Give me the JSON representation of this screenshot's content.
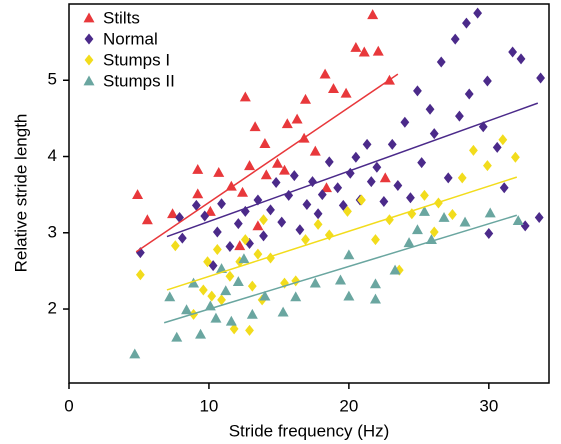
{
  "chart_data": {
    "type": "scatter",
    "xlabel": "Stride frequency (Hz)",
    "ylabel": "Relative stride length",
    "xlim": [
      0,
      34.3
    ],
    "ylim": [
      1.03,
      6.0
    ],
    "xticks": [
      0,
      10,
      20,
      30
    ],
    "yticks": [
      2,
      3,
      4,
      5
    ],
    "legend": "upper left",
    "series": [
      {
        "name": "Stilts",
        "color": "#e8383b",
        "marker": "triangle",
        "x": [
          4.9,
          5.6,
          7.4,
          9.2,
          9.2,
          10.1,
          10.7,
          11.6,
          12.4,
          12.6,
          12.9,
          13.3,
          14.0,
          14.1,
          14.9,
          15.4,
          15.6,
          16.3,
          16.8,
          16.9,
          17.6,
          18.3,
          18.4,
          18.9,
          19.8,
          20.5,
          21.1,
          21.7,
          22.1,
          22.9,
          22.6,
          13.5,
          12.2
        ],
        "values": [
          3.5,
          3.17,
          3.25,
          3.51,
          3.83,
          3.28,
          3.79,
          3.61,
          3.53,
          4.78,
          3.88,
          4.39,
          4.17,
          3.76,
          3.91,
          3.82,
          4.43,
          4.49,
          4.24,
          4.75,
          4.07,
          5.08,
          3.59,
          4.89,
          4.83,
          5.43,
          5.37,
          5.86,
          5.38,
          5.0,
          3.72,
          3.09,
          2.83
        ],
        "fit": {
          "x": [
            4.8,
            23.5
          ],
          "y": [
            2.75,
            5.08
          ]
        }
      },
      {
        "name": "Normal",
        "color": "#4b2a8a",
        "marker": "diamond",
        "x": [
          5.1,
          7.9,
          8.1,
          9.1,
          9.7,
          10.3,
          10.6,
          10.9,
          11.5,
          12.1,
          12.6,
          12.9,
          13.5,
          13.9,
          14.4,
          14.8,
          15.2,
          15.7,
          16.1,
          16.5,
          17.0,
          17.4,
          17.8,
          18.1,
          18.6,
          19.2,
          19.6,
          20.1,
          20.5,
          20.8,
          21.3,
          21.6,
          22.0,
          22.5,
          23.1,
          23.5,
          24.0,
          24.4,
          24.9,
          25.2,
          25.8,
          26.1,
          26.6,
          27.1,
          27.6,
          27.9,
          28.4,
          28.6,
          29.2,
          29.6,
          30.0,
          30.6,
          31.1,
          31.7,
          32.3,
          32.6,
          33.7,
          33.6,
          29.9
        ],
        "values": [
          2.74,
          3.2,
          2.93,
          3.36,
          3.22,
          2.57,
          3.01,
          3.38,
          2.82,
          3.12,
          3.28,
          2.86,
          3.43,
          2.96,
          3.3,
          3.66,
          3.14,
          3.49,
          3.75,
          3.04,
          3.37,
          3.67,
          3.25,
          3.5,
          3.93,
          3.59,
          3.36,
          3.78,
          3.99,
          3.43,
          4.16,
          3.67,
          3.86,
          3.41,
          4.16,
          3.62,
          4.45,
          3.46,
          4.86,
          3.92,
          4.62,
          4.3,
          5.24,
          3.72,
          5.54,
          4.53,
          5.75,
          4.82,
          5.88,
          4.39,
          2.99,
          4.12,
          3.59,
          5.37,
          5.28,
          3.09,
          5.03,
          3.2,
          4.99
        ],
        "fit": {
          "x": [
            7,
            33.5
          ],
          "y": [
            2.95,
            4.7
          ]
        }
      },
      {
        "name": "Stumps I",
        "color": "#f2dc1c",
        "marker": "diamond",
        "x": [
          5.1,
          7.6,
          8.9,
          9.6,
          9.9,
          10.2,
          10.6,
          10.9,
          11.5,
          11.8,
          12.2,
          12.6,
          13.1,
          13.5,
          13.9,
          14.4,
          15.4,
          16.2,
          16.9,
          17.8,
          18.6,
          19.9,
          20.9,
          21.9,
          22.9,
          23.6,
          24.5,
          25.4,
          26.4,
          27.4,
          28.1,
          28.9,
          29.9,
          31.0,
          31.9,
          26.1,
          12.9,
          13.8
        ],
        "values": [
          2.45,
          2.83,
          1.93,
          2.25,
          2.62,
          2.17,
          2.78,
          2.12,
          2.43,
          1.74,
          2.62,
          2.91,
          2.3,
          2.72,
          3.17,
          2.67,
          2.34,
          2.37,
          2.91,
          3.11,
          2.97,
          3.28,
          3.43,
          2.91,
          3.17,
          2.51,
          3.25,
          3.49,
          3.39,
          3.24,
          3.72,
          4.08,
          3.88,
          4.22,
          3.99,
          3.01,
          1.72,
          2.12
        ],
        "fit": {
          "x": [
            7,
            32
          ],
          "y": [
            2.25,
            3.73
          ]
        }
      },
      {
        "name": "Stumps II",
        "color": "#6aa6a0",
        "marker": "triangle",
        "x": [
          4.7,
          7.2,
          7.7,
          8.4,
          8.9,
          9.4,
          10.1,
          10.5,
          10.9,
          11.2,
          11.6,
          12.1,
          12.5,
          13.1,
          14.0,
          15.3,
          16.2,
          17.6,
          19.4,
          20.0,
          20.0,
          21.9,
          21.9,
          23.3,
          24.3,
          24.9,
          25.4,
          25.9,
          26.8,
          28.3,
          30.1,
          32.1
        ],
        "values": [
          1.41,
          2.16,
          1.63,
          1.99,
          2.34,
          1.67,
          2.04,
          1.88,
          2.53,
          2.24,
          1.84,
          2.36,
          2.66,
          1.93,
          2.17,
          1.96,
          2.16,
          2.34,
          2.38,
          2.17,
          2.71,
          2.13,
          2.33,
          2.51,
          2.87,
          3.04,
          3.28,
          2.91,
          3.2,
          3.14,
          3.26,
          3.16
        ],
        "fit": {
          "x": [
            6.8,
            32
          ],
          "y": [
            1.82,
            3.23
          ]
        }
      }
    ]
  }
}
